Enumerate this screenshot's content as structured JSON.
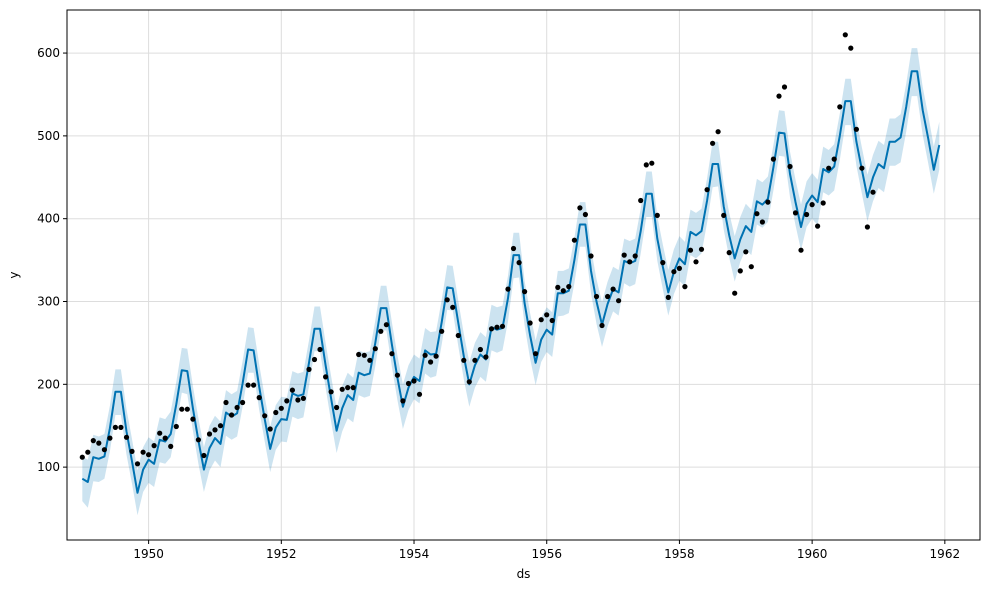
{
  "chart_data": {
    "type": "line",
    "title": "",
    "xlabel": "ds",
    "ylabel": "y",
    "xlim": [
      1948.77,
      1962.53
    ],
    "ylim": [
      12,
      652
    ],
    "x_ticks": [
      1950,
      1952,
      1954,
      1956,
      1958,
      1960,
      1962
    ],
    "x_tick_labels": [
      "1950",
      "1952",
      "1954",
      "1956",
      "1958",
      "1960",
      "1962"
    ],
    "y_ticks": [
      100,
      200,
      300,
      400,
      500,
      600
    ],
    "y_tick_labels": [
      "100",
      "200",
      "300",
      "400",
      "500",
      "600"
    ],
    "grid": true,
    "colors": {
      "forecast_line": "#0072B2",
      "uncertainty_band": "#0072B2",
      "observations": "#000000",
      "grid": "#dddddd"
    },
    "series": [
      {
        "kind": "observations",
        "x": [
          1949.0,
          1949.083,
          1949.167,
          1949.25,
          1949.333,
          1949.417,
          1949.5,
          1949.583,
          1949.667,
          1949.75,
          1949.833,
          1949.917,
          1950.0,
          1950.083,
          1950.167,
          1950.25,
          1950.333,
          1950.417,
          1950.5,
          1950.583,
          1950.667,
          1950.75,
          1950.833,
          1950.917,
          1951.0,
          1951.083,
          1951.167,
          1951.25,
          1951.333,
          1951.417,
          1951.5,
          1951.583,
          1951.667,
          1951.75,
          1951.833,
          1951.917,
          1952.0,
          1952.083,
          1952.167,
          1952.25,
          1952.333,
          1952.417,
          1952.5,
          1952.583,
          1952.667,
          1952.75,
          1952.833,
          1952.917,
          1953.0,
          1953.083,
          1953.167,
          1953.25,
          1953.333,
          1953.417,
          1953.5,
          1953.583,
          1953.667,
          1953.75,
          1953.833,
          1953.917,
          1954.0,
          1954.083,
          1954.167,
          1954.25,
          1954.333,
          1954.417,
          1954.5,
          1954.583,
          1954.667,
          1954.75,
          1954.833,
          1954.917,
          1955.0,
          1955.083,
          1955.167,
          1955.25,
          1955.333,
          1955.417,
          1955.5,
          1955.583,
          1955.667,
          1955.75,
          1955.833,
          1955.917,
          1956.0,
          1956.083,
          1956.167,
          1956.25,
          1956.333,
          1956.417,
          1956.5,
          1956.583,
          1956.667,
          1956.75,
          1956.833,
          1956.917,
          1957.0,
          1957.083,
          1957.167,
          1957.25,
          1957.333,
          1957.417,
          1957.5,
          1957.583,
          1957.667,
          1957.75,
          1957.833,
          1957.917,
          1958.0,
          1958.083,
          1958.167,
          1958.25,
          1958.333,
          1958.417,
          1958.5,
          1958.583,
          1958.667,
          1958.75,
          1958.833,
          1958.917,
          1959.0,
          1959.083,
          1959.167,
          1959.25,
          1959.333,
          1959.417,
          1959.5,
          1959.583,
          1959.667,
          1959.75,
          1959.833,
          1959.917,
          1960.0,
          1960.083,
          1960.167,
          1960.25,
          1960.333,
          1960.417,
          1960.5,
          1960.583,
          1960.667,
          1960.75,
          1960.833,
          1960.917
        ],
        "y": [
          112,
          118,
          132,
          129,
          121,
          135,
          148,
          148,
          136,
          119,
          104,
          118,
          115,
          126,
          141,
          135,
          125,
          149,
          170,
          170,
          158,
          133,
          114,
          140,
          145,
          150,
          178,
          163,
          172,
          178,
          199,
          199,
          184,
          162,
          146,
          166,
          171,
          180,
          193,
          181,
          183,
          218,
          230,
          242,
          209,
          191,
          172,
          194,
          196,
          196,
          236,
          235,
          229,
          243,
          264,
          272,
          237,
          211,
          180,
          201,
          204,
          188,
          235,
          227,
          234,
          264,
          302,
          293,
          259,
          229,
          203,
          229,
          242,
          233,
          267,
          269,
          270,
          315,
          364,
          347,
          312,
          274,
          237,
          278,
          284,
          277,
          317,
          313,
          318,
          374,
          413,
          405,
          355,
          306,
          271,
          306,
          315,
          301,
          356,
          348,
          355,
          422,
          465,
          467,
          404,
          347,
          305,
          336,
          340,
          318,
          362,
          348,
          363,
          435,
          491,
          505,
          404,
          359,
          310,
          337,
          360,
          342,
          406,
          396,
          420,
          472,
          548,
          559,
          463,
          407,
          362,
          405,
          417,
          391,
          419,
          461,
          472,
          535,
          622,
          606,
          508,
          461,
          390,
          432
        ]
      },
      {
        "kind": "forecast",
        "name": "yhat",
        "x": [
          1949.0,
          1949.083,
          1949.167,
          1949.25,
          1949.333,
          1949.417,
          1949.5,
          1949.583,
          1949.667,
          1949.75,
          1949.833,
          1949.917,
          1950.0,
          1950.083,
          1950.167,
          1950.25,
          1950.333,
          1950.417,
          1950.5,
          1950.583,
          1950.667,
          1950.75,
          1950.833,
          1950.917,
          1951.0,
          1951.083,
          1951.167,
          1951.25,
          1951.333,
          1951.417,
          1951.5,
          1951.583,
          1951.667,
          1951.75,
          1951.833,
          1951.917,
          1952.0,
          1952.083,
          1952.167,
          1952.25,
          1952.333,
          1952.417,
          1952.5,
          1952.583,
          1952.667,
          1952.75,
          1952.833,
          1952.917,
          1953.0,
          1953.083,
          1953.167,
          1953.25,
          1953.333,
          1953.417,
          1953.5,
          1953.583,
          1953.667,
          1953.75,
          1953.833,
          1953.917,
          1954.0,
          1954.083,
          1954.167,
          1954.25,
          1954.333,
          1954.417,
          1954.5,
          1954.583,
          1954.667,
          1954.75,
          1954.833,
          1954.917,
          1955.0,
          1955.083,
          1955.167,
          1955.25,
          1955.333,
          1955.417,
          1955.5,
          1955.583,
          1955.667,
          1955.75,
          1955.833,
          1955.917,
          1956.0,
          1956.083,
          1956.167,
          1956.25,
          1956.333,
          1956.417,
          1956.5,
          1956.583,
          1956.667,
          1956.75,
          1956.833,
          1956.917,
          1957.0,
          1957.083,
          1957.167,
          1957.25,
          1957.333,
          1957.417,
          1957.5,
          1957.583,
          1957.667,
          1957.75,
          1957.833,
          1957.917,
          1958.0,
          1958.083,
          1958.167,
          1958.25,
          1958.333,
          1958.417,
          1958.5,
          1958.583,
          1958.667,
          1958.75,
          1958.833,
          1958.917,
          1959.0,
          1959.083,
          1959.167,
          1959.25,
          1959.333,
          1959.417,
          1959.5,
          1959.583,
          1959.667,
          1959.75,
          1959.833,
          1959.917,
          1960.0,
          1960.083,
          1960.167,
          1960.25,
          1960.333,
          1960.417,
          1960.5,
          1960.583,
          1960.667,
          1960.75,
          1960.833,
          1960.917,
          1961.0,
          1961.083,
          1961.167,
          1961.25,
          1961.333,
          1961.417,
          1961.5,
          1961.583,
          1961.667,
          1961.75,
          1961.833,
          1961.917
        ],
        "y": [
          86,
          82,
          112,
          110,
          113,
          147,
          191,
          191,
          143,
          107,
          69,
          97,
          109,
          104,
          133,
          131,
          140,
          176,
          217,
          216,
          171,
          132,
          97,
          123,
          135,
          128,
          166,
          161,
          165,
          201,
          242,
          241,
          197,
          158,
          122,
          148,
          158,
          157,
          189,
          186,
          188,
          226,
          267,
          267,
          223,
          183,
          144,
          171,
          187,
          181,
          214,
          211,
          213,
          250,
          292,
          292,
          248,
          208,
          173,
          196,
          209,
          204,
          241,
          236,
          237,
          275,
          317,
          316,
          274,
          234,
          200,
          223,
          236,
          230,
          269,
          266,
          268,
          304,
          356,
          356,
          298,
          259,
          226,
          254,
          266,
          260,
          310,
          310,
          313,
          350,
          393,
          393,
          337,
          300,
          272,
          297,
          315,
          311,
          349,
          346,
          349,
          385,
          430,
          430,
          376,
          342,
          311,
          336,
          352,
          345,
          384,
          380,
          385,
          422,
          466,
          466,
          415,
          380,
          352,
          375,
          391,
          384,
          421,
          417,
          424,
          462,
          504,
          503,
          454,
          420,
          390,
          418,
          428,
          420,
          460,
          456,
          463,
          500,
          542,
          542,
          493,
          459,
          426,
          450,
          466,
          461,
          493,
          493,
          498,
          535,
          578,
          578,
          531,
          497,
          459,
          489
        ]
      },
      {
        "kind": "uncertainty",
        "name": "yhat_lower / yhat_upper",
        "lower": [
          59,
          51,
          83,
          82,
          86,
          119,
          163,
          163,
          115,
          80,
          42,
          70,
          81,
          76,
          106,
          104,
          112,
          149,
          190,
          188,
          144,
          104,
          70,
          96,
          108,
          100,
          138,
          133,
          137,
          173,
          214,
          214,
          169,
          131,
          94,
          121,
          131,
          130,
          161,
          158,
          160,
          198,
          240,
          240,
          196,
          155,
          117,
          143,
          159,
          154,
          187,
          184,
          186,
          222,
          265,
          265,
          221,
          181,
          146,
          169,
          182,
          177,
          213,
          208,
          210,
          248,
          290,
          289,
          246,
          206,
          173,
          196,
          209,
          203,
          241,
          238,
          241,
          276,
          328,
          329,
          271,
          231,
          199,
          227,
          239,
          233,
          282,
          283,
          286,
          322,
          366,
          366,
          310,
          273,
          245,
          270,
          288,
          283,
          322,
          318,
          321,
          358,
          402,
          402,
          349,
          315,
          283,
          309,
          325,
          318,
          356,
          352,
          358,
          395,
          438,
          439,
          387,
          353,
          324,
          348,
          363,
          356,
          393,
          389,
          396,
          434,
          476,
          475,
          426,
          392,
          362,
          390,
          400,
          392,
          432,
          428,
          434,
          471,
          513,
          513,
          464,
          430,
          397,
          421,
          437,
          432,
          464,
          464,
          468,
          505,
          548,
          548,
          501,
          467,
          430,
          459
        ],
        "upper": [
          113,
          109,
          139,
          137,
          140,
          174,
          218,
          218,
          170,
          134,
          96,
          124,
          136,
          131,
          160,
          158,
          167,
          203,
          244,
          243,
          198,
          159,
          124,
          150,
          162,
          155,
          193,
          188,
          192,
          228,
          269,
          268,
          224,
          185,
          149,
          175,
          185,
          184,
          216,
          213,
          215,
          253,
          294,
          294,
          250,
          210,
          171,
          198,
          214,
          208,
          241,
          238,
          240,
          277,
          319,
          319,
          275,
          235,
          200,
          223,
          236,
          231,
          268,
          263,
          264,
          302,
          344,
          343,
          301,
          261,
          227,
          250,
          263,
          257,
          296,
          293,
          295,
          331,
          383,
          383,
          325,
          286,
          253,
          281,
          293,
          287,
          337,
          337,
          340,
          377,
          420,
          420,
          364,
          327,
          299,
          324,
          342,
          338,
          376,
          373,
          376,
          412,
          457,
          457,
          403,
          369,
          338,
          363,
          379,
          372,
          411,
          407,
          412,
          449,
          493,
          493,
          442,
          407,
          379,
          402,
          418,
          411,
          448,
          444,
          451,
          489,
          531,
          530,
          481,
          447,
          417,
          445,
          455,
          447,
          487,
          483,
          490,
          527,
          569,
          569,
          520,
          486,
          453,
          477,
          494,
          489,
          521,
          521,
          526,
          563,
          606,
          606,
          559,
          525,
          487,
          517
        ]
      }
    ]
  }
}
